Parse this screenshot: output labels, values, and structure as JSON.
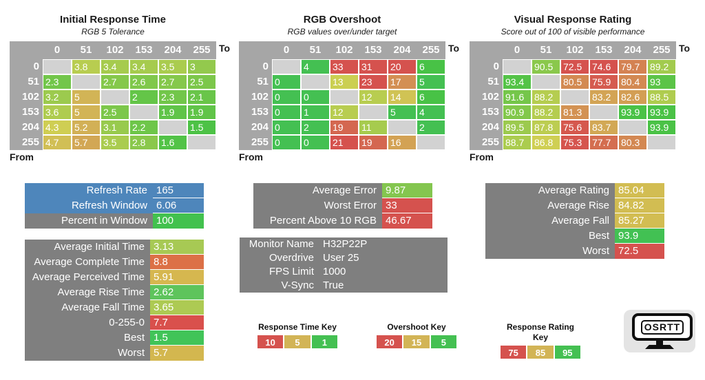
{
  "colors": {
    "scale_green": "#44c052",
    "scale_yellow": "#d2b456",
    "scale_red": "#d5524e",
    "header_gray": "#a6a6a6",
    "blank_cell": "#d2d2d2",
    "label_gray": "#7f7f7f",
    "blue": "#4e86bb"
  },
  "chart_data": [
    {
      "type": "heatmap",
      "title": "Initial Response Time",
      "subtitle": "RGB 5 Tolerance",
      "xlabel": "To",
      "ylabel": "From",
      "x": [
        "0",
        "51",
        "102",
        "153",
        "204",
        "255"
      ],
      "y": [
        "0",
        "51",
        "102",
        "153",
        "204",
        "255"
      ],
      "values": [
        [
          null,
          3.8,
          3.4,
          3.4,
          3.5,
          3
        ],
        [
          2.3,
          null,
          2.7,
          2.6,
          2.7,
          2.5
        ],
        [
          3.2,
          5,
          null,
          2,
          2.3,
          2.1
        ],
        [
          3.6,
          5,
          2.5,
          null,
          1.9,
          1.9
        ],
        [
          4.3,
          5.2,
          3.1,
          2.2,
          null,
          1.5
        ],
        [
          4.7,
          5.7,
          3.5,
          2.8,
          1.6,
          null
        ]
      ],
      "color_scale": {
        "green": 1,
        "yellow": 5,
        "red": 10
      }
    },
    {
      "type": "heatmap",
      "title": "RGB Overshoot",
      "subtitle": "RGB values over/under target",
      "xlabel": "To",
      "ylabel": "From",
      "x": [
        "0",
        "51",
        "102",
        "153",
        "204",
        "255"
      ],
      "y": [
        "0",
        "51",
        "102",
        "153",
        "204",
        "255"
      ],
      "values": [
        [
          null,
          4,
          33,
          31,
          20,
          6
        ],
        [
          0,
          null,
          13,
          23,
          17,
          5
        ],
        [
          0,
          0,
          null,
          12,
          14,
          6
        ],
        [
          0,
          1,
          12,
          null,
          5,
          4
        ],
        [
          0,
          2,
          19,
          11,
          null,
          2
        ],
        [
          0,
          0,
          21,
          19,
          16,
          null
        ]
      ],
      "color_scale": {
        "green": 5,
        "yellow": 15,
        "red": 20
      }
    },
    {
      "type": "heatmap",
      "title": "Visual Response Rating",
      "subtitle": "Score out of 100 of visible performance",
      "xlabel": "To",
      "ylabel": "From",
      "x": [
        "0",
        "51",
        "102",
        "153",
        "204",
        "255"
      ],
      "y": [
        "0",
        "51",
        "102",
        "153",
        "204",
        "255"
      ],
      "values": [
        [
          null,
          90.5,
          72.5,
          74.6,
          79.7,
          89.2
        ],
        [
          93.4,
          null,
          80.5,
          75.9,
          80.4,
          93
        ],
        [
          91.6,
          88.2,
          null,
          83.2,
          82.6,
          88.5
        ],
        [
          90.9,
          88.2,
          81.3,
          null,
          93.9,
          93.9
        ],
        [
          89.5,
          87.8,
          75.6,
          83.7,
          null,
          93.9
        ],
        [
          88.7,
          86.8,
          75.3,
          77.7,
          80.3,
          null
        ]
      ],
      "color_scale": {
        "green": 95,
        "yellow": 85,
        "red": 75
      }
    }
  ],
  "stats": {
    "refresh": {
      "rows": [
        {
          "label": "Refresh Rate",
          "value": "165",
          "label_bg": "#4e86bb",
          "value_bg": "#4e86bb"
        },
        {
          "label": "Refresh Window",
          "value": "6.06",
          "label_bg": "#4e86bb",
          "value_bg": "#4e86bb"
        },
        {
          "label": "Percent in Window",
          "value": "100",
          "label_bg": "#7f7f7f",
          "value_bg": "#42c14e"
        }
      ]
    },
    "response_times": {
      "rows": [
        {
          "label": "Average Initial Time",
          "value": "3.13",
          "label_bg": "#7f7f7f",
          "value_bg": "#a7c954"
        },
        {
          "label": "Average Complete Time",
          "value": "8.8",
          "label_bg": "#7f7f7f",
          "value_bg": "#dc7046"
        },
        {
          "label": "Average Perceived Time",
          "value": "5.91",
          "label_bg": "#7f7f7f",
          "value_bg": "#d6b74f"
        },
        {
          "label": "Average Rise Time",
          "value": "2.62",
          "label_bg": "#7f7f7f",
          "value_bg": "#5ec45c"
        },
        {
          "label": "Average Fall Time",
          "value": "3.65",
          "label_bg": "#7f7f7f",
          "value_bg": "#adca53"
        },
        {
          "label": "0-255-0",
          "value": "7.7",
          "label_bg": "#7f7f7f",
          "value_bg": "#d9504c"
        },
        {
          "label": "Best",
          "value": "1.5",
          "label_bg": "#7f7f7f",
          "value_bg": "#41c458"
        },
        {
          "label": "Worst",
          "value": "5.7",
          "label_bg": "#7f7f7f",
          "value_bg": "#d3b74f"
        }
      ]
    },
    "overshoot": {
      "rows": [
        {
          "label": "Average Error",
          "value": "9.87",
          "label_bg": "#7f7f7f",
          "value_bg": "#84c64f"
        },
        {
          "label": "Worst Error",
          "value": "33",
          "label_bg": "#7f7f7f",
          "value_bg": "#d5524e"
        },
        {
          "label": "Percent Above 10 RGB",
          "value": "46.67",
          "label_bg": "#7f7f7f",
          "value_bg": "#d5524e"
        }
      ]
    },
    "monitor": {
      "rows": [
        {
          "label": "Monitor Name",
          "value": "H32P22P",
          "label_bg": "#7f7f7f",
          "value_bg": "#7f7f7f"
        },
        {
          "label": "Overdrive",
          "value": "User 25",
          "label_bg": "#7f7f7f",
          "value_bg": "#7f7f7f"
        },
        {
          "label": "FPS Limit",
          "value": "1000",
          "label_bg": "#7f7f7f",
          "value_bg": "#7f7f7f"
        },
        {
          "label": "V-Sync",
          "value": "True",
          "label_bg": "#7f7f7f",
          "value_bg": "#7f7f7f"
        }
      ]
    },
    "rating": {
      "rows": [
        {
          "label": "Average Rating",
          "value": "85.04",
          "label_bg": "#7f7f7f",
          "value_bg": "#d2bd52"
        },
        {
          "label": "Average Rise",
          "value": "84.82",
          "label_bg": "#7f7f7f",
          "value_bg": "#d2bd52"
        },
        {
          "label": "Average Fall",
          "value": "85.27",
          "label_bg": "#7f7f7f",
          "value_bg": "#d2bd52"
        },
        {
          "label": "Best",
          "value": "93.9",
          "label_bg": "#7f7f7f",
          "value_bg": "#42c153"
        },
        {
          "label": "Worst",
          "value": "72.5",
          "label_bg": "#7f7f7f",
          "value_bg": "#d5524e"
        }
      ]
    }
  },
  "legend_keys": [
    {
      "title": "Response Time Key",
      "cells": [
        {
          "label": "10",
          "bg": "#d5524e"
        },
        {
          "label": "5",
          "bg": "#d2b456"
        },
        {
          "label": "1",
          "bg": "#44c052"
        }
      ]
    },
    {
      "title": "Overshoot Key",
      "cells": [
        {
          "label": "20",
          "bg": "#d5524e"
        },
        {
          "label": "15",
          "bg": "#d2b456"
        },
        {
          "label": "5",
          "bg": "#44c052"
        }
      ]
    },
    {
      "title": "Response Rating Key",
      "cells": [
        {
          "label": "75",
          "bg": "#d5524e"
        },
        {
          "label": "85",
          "bg": "#d2b456"
        },
        {
          "label": "95",
          "bg": "#44c052"
        }
      ]
    }
  ],
  "logo": {
    "text": "OSRTT"
  }
}
